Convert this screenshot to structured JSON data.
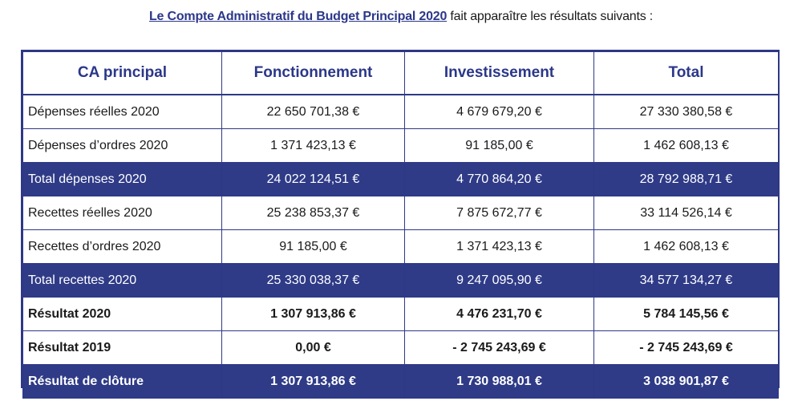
{
  "caption": {
    "link_text": "Le Compte Administratif du Budget Principal 2020",
    "rest_text": " fait apparaître les résultats suivants :"
  },
  "table": {
    "headers": [
      "CA principal",
      "Fonctionnement",
      "Investissement",
      "Total"
    ],
    "rows": [
      {
        "label": "Dépenses réelles 2020",
        "fonctionnement": "22 650 701,38 €",
        "investissement": "4 679 679,20 €",
        "total": "27 330 380,58 €"
      },
      {
        "label": "Dépenses d’ordres 2020",
        "fonctionnement": "1 371 423,13 €",
        "investissement": "91 185,00 €",
        "total": "1 462 608,13 €"
      },
      {
        "label": "Total dépenses 2020",
        "fonctionnement": "24 022 124,51 €",
        "investissement": "4 770 864,20 €",
        "total": "28 792 988,71 €"
      },
      {
        "label": "Recettes réelles 2020",
        "fonctionnement": "25 238 853,37 €",
        "investissement": "7 875 672,77 €",
        "total": "33 114 526,14 €"
      },
      {
        "label": "Recettes d’ordres 2020",
        "fonctionnement": "91 185,00 €",
        "investissement": "1 371 423,13 €",
        "total": "1 462 608,13 €"
      },
      {
        "label": "Total recettes 2020",
        "fonctionnement": "25 330 038,37 €",
        "investissement": "9 247 095,90 €",
        "total": "34 577 134,27 €"
      },
      {
        "label": "Résultat 2020",
        "fonctionnement": "1 307 913,86 €",
        "investissement": "4 476 231,70 €",
        "total": "5 784 145,56 €"
      },
      {
        "label": "Résultat 2019",
        "fonctionnement": "0,00 €",
        "investissement": "- 2 745 243,69 €",
        "total": "- 2 745 243,69 €"
      },
      {
        "label": "Résultat de clôture",
        "fonctionnement": "1 307 913,86 €",
        "investissement": "1 730 988,01 €",
        "total": "3 038 901,87 €"
      }
    ]
  },
  "colors": {
    "accent": "#2f3b87",
    "header_text": "#2b3789",
    "border": "#2e3886"
  }
}
